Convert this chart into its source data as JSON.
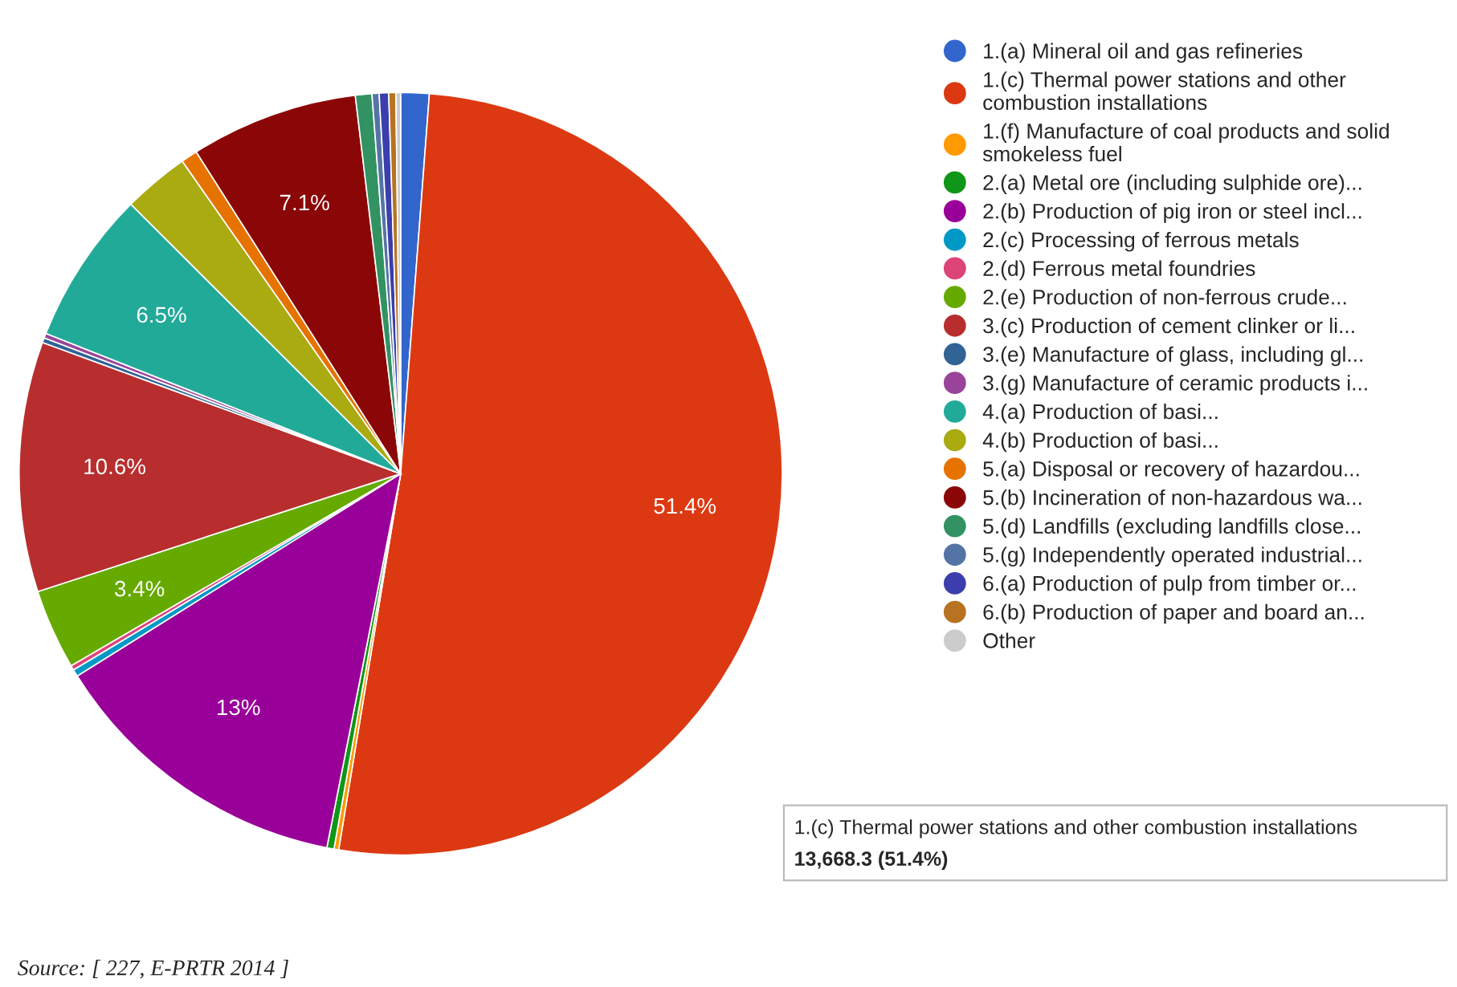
{
  "chart_data": {
    "type": "pie",
    "categories": [
      "1.(a) Mineral oil and gas refineries",
      "1.(c) Thermal power stations and other combustion installations",
      "1.(f) Manufacture of coal products and solid smokeless fuel",
      "2.(a) Metal ore (including sulphide ore)...",
      "2.(b) Production of pig iron or steel incl...",
      "2.(c) Processing of ferrous metals",
      "2.(d) Ferrous metal foundries",
      "2.(e) Production of non-ferrous crude...",
      "3.(c) Production of cement clinker or li...",
      "3.(e) Manufacture of glass, including gl...",
      "3.(g) Manufacture of ceramic products i...",
      "4.(a) Production of basi...",
      "4.(b) Production of basi...",
      "5.(a) Disposal or recovery of hazardou...",
      "5.(b) Incineration of non-hazardous wa...",
      "5.(d) Landfills (excluding landfills close...",
      "5.(g) Independently operated industrial...",
      "6.(a) Production of pulp from timber or...",
      "6.(b) Production of paper and board an...",
      "Other"
    ],
    "values": [
      1.2,
      51.4,
      0.2,
      0.3,
      13,
      0.3,
      0.2,
      3.4,
      10.6,
      0.2,
      0.2,
      6.5,
      2.8,
      0.7,
      7.1,
      0.7,
      0.3,
      0.4,
      0.3,
      0.2
    ],
    "colors": [
      "#3366cc",
      "#dc3912",
      "#ff9900",
      "#109618",
      "#990099",
      "#0099c6",
      "#dd4477",
      "#66aa00",
      "#b82e2e",
      "#316395",
      "#994499",
      "#22aa99",
      "#aaaa11",
      "#e67300",
      "#8b0707",
      "#329262",
      "#5574a6",
      "#3b3eac",
      "#b77322",
      "#cccccc"
    ],
    "value_labels": [
      null,
      "51.4%",
      null,
      null,
      "13%",
      null,
      null,
      "3.4%",
      "10.6%",
      null,
      null,
      "6.5%",
      null,
      null,
      "7.1%",
      null,
      null,
      null,
      null,
      null
    ],
    "legend": "right",
    "annotations": [
      "Source: [ 227, E-PRTR 2014 ]",
      "1.(c) Thermal power stations and other combustion installations",
      "13,668.3 (51.4%)"
    ]
  }
}
